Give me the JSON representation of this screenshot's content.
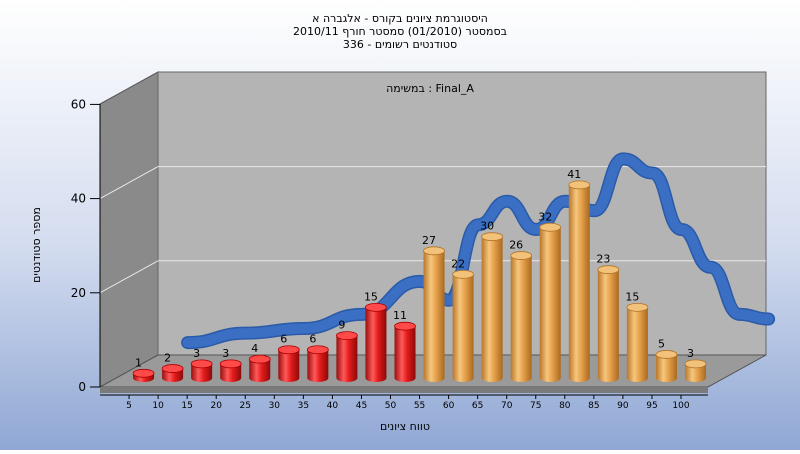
{
  "title_lines": [
    "היסטוגרמת ציונים בקורס - אלגברה א",
    "בסמסטר  (01/2010)  סמסטר חורף 2010/11",
    "סטודנטים רשומים - 336"
  ],
  "colors": {
    "background_top": "#ffffff",
    "background_bottom": "#8fa7d4",
    "back_wall": "#b4b4b4",
    "side_wall": "#8a8a8a",
    "floor": "#9a9a9a",
    "bar_red": "#e41b1b",
    "bar_orange": "#e5a04a",
    "curve": "#3a6fc4"
  },
  "chart_data": {
    "type": "bar",
    "title": "",
    "annotation": "במשימה : Final_A",
    "xlabel": "טווח ציונים",
    "ylabel": "מספר סטודנטים",
    "ylim": [
      0,
      60
    ],
    "yticks": [
      "0",
      "20",
      "40",
      "60"
    ],
    "grid": true,
    "categories": [
      "5",
      "10",
      "15",
      "20",
      "25",
      "30",
      "35",
      "40",
      "45",
      "50",
      "55",
      "60",
      "65",
      "70",
      "75",
      "80",
      "85",
      "90",
      "95",
      "100"
    ],
    "values": [
      1,
      2,
      3,
      3,
      4,
      6,
      6,
      9,
      15,
      11,
      27,
      22,
      30,
      26,
      32,
      41,
      23,
      15,
      5,
      3
    ],
    "bar_colors": [
      "red",
      "red",
      "red",
      "red",
      "red",
      "red",
      "red",
      "red",
      "red",
      "red",
      "orange",
      "orange",
      "orange",
      "orange",
      "orange",
      "orange",
      "orange",
      "orange",
      "orange",
      "orange"
    ],
    "series": [
      {
        "values": [
          1,
          2,
          3,
          3,
          4,
          6,
          6,
          9,
          15,
          11,
          27,
          22,
          30,
          26,
          32,
          41,
          23,
          15,
          5,
          3
        ]
      }
    ],
    "trend_curve": [
      {
        "x": 10,
        "y": 2
      },
      {
        "x": 20,
        "y": 4
      },
      {
        "x": 30,
        "y": 5
      },
      {
        "x": 40,
        "y": 8
      },
      {
        "x": 50,
        "y": 15
      },
      {
        "x": 55,
        "y": 11
      },
      {
        "x": 60,
        "y": 27
      },
      {
        "x": 65,
        "y": 32
      },
      {
        "x": 70,
        "y": 26
      },
      {
        "x": 75,
        "y": 32
      },
      {
        "x": 80,
        "y": 30
      },
      {
        "x": 85,
        "y": 41
      },
      {
        "x": 90,
        "y": 38
      },
      {
        "x": 95,
        "y": 26
      },
      {
        "x": 100,
        "y": 18
      },
      {
        "x": 105,
        "y": 8
      },
      {
        "x": 110,
        "y": 7
      }
    ]
  }
}
